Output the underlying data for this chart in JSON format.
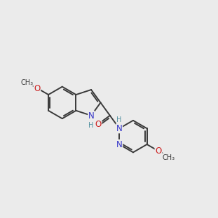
{
  "bg": "#ebebeb",
  "bond_color": "#3a3a3a",
  "bond_lw": 1.4,
  "atom_colors": {
    "N": "#3535c8",
    "O": "#cc2020",
    "C": "#3a3a3a",
    "H": "#5090a0"
  },
  "fs": 8.5,
  "fs_small": 7.0,
  "dbl_off": 0.08,
  "dbl_shrink": 0.13
}
